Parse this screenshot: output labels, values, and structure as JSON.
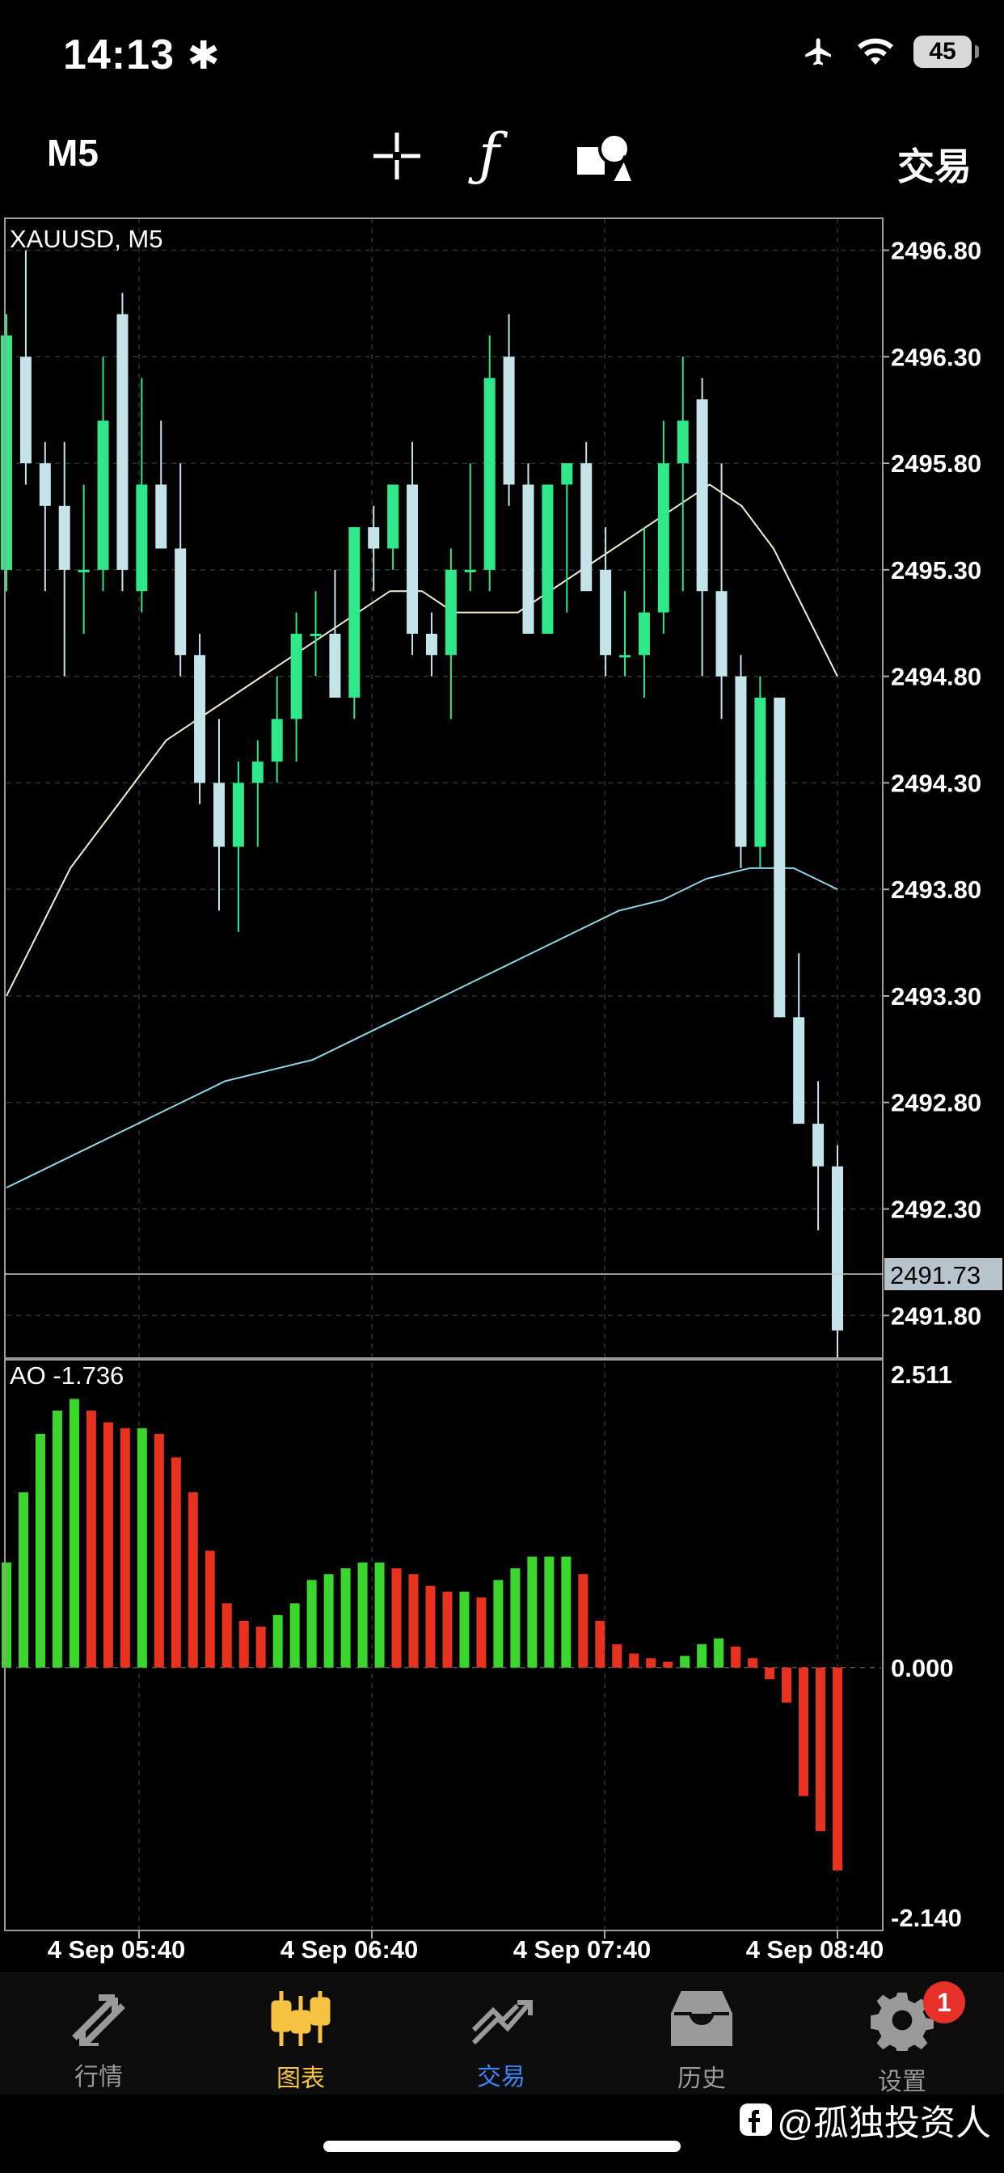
{
  "status_bar": {
    "time": "14:13",
    "battery": "45",
    "icons": [
      "bluetooth-icon",
      "airplane-icon",
      "wifi-icon",
      "battery-icon"
    ]
  },
  "toolbar": {
    "timeframe": "M5",
    "trade_label": "交易",
    "icons": [
      "crosshair-icon",
      "function-icon",
      "objects-icon"
    ]
  },
  "chart": {
    "symbol_label": "XAUUSD, M5",
    "current_price_label": "2491.73",
    "price_axis_labels": [
      "2496.80",
      "2496.30",
      "2495.80",
      "2495.30",
      "2494.80",
      "2494.30",
      "2493.80",
      "2493.30",
      "2492.80",
      "2492.30",
      "2491.80"
    ],
    "time_axis_labels": [
      "4 Sep 05:40",
      "4 Sep 06:40",
      "4 Sep 07:40",
      "4 Sep 08:40"
    ],
    "ao_label": "AO -1.736",
    "ao_axis_labels": [
      "2.511",
      "0.000",
      "-2.140"
    ],
    "colors": {
      "bull": "#2ee88a",
      "bear": "#c4e4ea",
      "ao_up": "#3ad62c",
      "ao_down": "#e8321e",
      "ma_fast": "#f2efcf",
      "ma_slow": "#8fd6e6"
    }
  },
  "chart_data": {
    "type": "candlestick",
    "symbol": "XAUUSD",
    "timeframe": "M5",
    "ylim": [
      2491.6,
      2496.95
    ],
    "candles_ohlc": [
      [
        2495.3,
        2496.5,
        2495.2,
        2496.4
      ],
      [
        2496.3,
        2496.8,
        2495.7,
        2495.8
      ],
      [
        2495.8,
        2495.9,
        2495.2,
        2495.6
      ],
      [
        2495.6,
        2495.9,
        2494.8,
        2495.3
      ],
      [
        2495.3,
        2495.7,
        2495.0,
        2495.3
      ],
      [
        2495.3,
        2496.3,
        2495.2,
        2496.0
      ],
      [
        2496.5,
        2496.6,
        2495.2,
        2495.3
      ],
      [
        2495.2,
        2496.2,
        2495.1,
        2495.7
      ],
      [
        2495.7,
        2496.0,
        2495.4,
        2495.4
      ],
      [
        2495.4,
        2495.8,
        2494.8,
        2494.9
      ],
      [
        2494.9,
        2495.0,
        2494.2,
        2494.3
      ],
      [
        2494.3,
        2494.6,
        2493.7,
        2494.0
      ],
      [
        2494.0,
        2494.4,
        2493.6,
        2494.3
      ],
      [
        2494.3,
        2494.5,
        2494.0,
        2494.4
      ],
      [
        2494.4,
        2494.8,
        2494.3,
        2494.6
      ],
      [
        2494.6,
        2495.1,
        2494.4,
        2495.0
      ],
      [
        2495.0,
        2495.2,
        2494.8,
        2495.0
      ],
      [
        2495.0,
        2495.3,
        2494.7,
        2494.7
      ],
      [
        2494.7,
        2495.5,
        2494.6,
        2495.5
      ],
      [
        2495.5,
        2495.6,
        2495.2,
        2495.4
      ],
      [
        2495.4,
        2495.7,
        2495.3,
        2495.7
      ],
      [
        2495.7,
        2495.9,
        2494.9,
        2495.0
      ],
      [
        2495.0,
        2495.1,
        2494.8,
        2494.9
      ],
      [
        2494.9,
        2495.4,
        2494.6,
        2495.3
      ],
      [
        2495.3,
        2495.8,
        2495.2,
        2495.3
      ],
      [
        2495.3,
        2496.4,
        2495.2,
        2496.2
      ],
      [
        2496.3,
        2496.5,
        2495.6,
        2495.7
      ],
      [
        2495.7,
        2495.8,
        2495.1,
        2495.0
      ],
      [
        2495.0,
        2495.7,
        2495.0,
        2495.7
      ],
      [
        2495.7,
        2495.8,
        2495.1,
        2495.8
      ],
      [
        2495.8,
        2495.9,
        2495.3,
        2495.2
      ],
      [
        2495.3,
        2495.5,
        2494.8,
        2494.9
      ],
      [
        2494.9,
        2495.2,
        2494.8,
        2494.9
      ],
      [
        2494.9,
        2495.5,
        2494.7,
        2495.1
      ],
      [
        2495.1,
        2496.0,
        2495.0,
        2495.8
      ],
      [
        2495.8,
        2496.3,
        2495.2,
        2496.0
      ],
      [
        2496.1,
        2496.2,
        2494.8,
        2495.2
      ],
      [
        2495.2,
        2495.8,
        2494.6,
        2494.8
      ],
      [
        2494.8,
        2494.9,
        2493.9,
        2494.0
      ],
      [
        2494.0,
        2494.8,
        2493.9,
        2494.7
      ],
      [
        2494.7,
        2494.7,
        2493.2,
        2493.2
      ],
      [
        2493.2,
        2493.5,
        2492.7,
        2492.7
      ],
      [
        2492.7,
        2492.9,
        2492.2,
        2492.5
      ],
      [
        2492.5,
        2492.6,
        2491.6,
        2491.73
      ]
    ],
    "ma_fast": [
      2493.3,
      2493.6,
      2493.9,
      2494.1,
      2494.3,
      2494.5,
      2494.6,
      2494.7,
      2494.8,
      2494.9,
      2495.0,
      2495.1,
      2495.2,
      2495.2,
      2495.1,
      2495.1,
      2495.1,
      2495.2,
      2495.3,
      2495.4,
      2495.5,
      2495.6,
      2495.7,
      2495.6,
      2495.4,
      2495.1,
      2494.8
    ],
    "ma_slow": [
      2492.4,
      2492.5,
      2492.6,
      2492.7,
      2492.8,
      2492.9,
      2492.95,
      2493.0,
      2493.1,
      2493.2,
      2493.3,
      2493.4,
      2493.5,
      2493.6,
      2493.7,
      2493.75,
      2493.85,
      2493.9,
      2493.9,
      2493.8
    ],
    "ao": {
      "ylim": [
        -2.14,
        2.511
      ],
      "values": [
        0.9,
        1.5,
        2.0,
        2.2,
        2.3,
        2.2,
        2.1,
        2.05,
        2.05,
        2.0,
        1.8,
        1.5,
        1.0,
        0.55,
        0.4,
        0.35,
        0.45,
        0.55,
        0.75,
        0.8,
        0.85,
        0.9,
        0.9,
        0.85,
        0.8,
        0.7,
        0.65,
        0.65,
        0.6,
        0.75,
        0.85,
        0.95,
        0.95,
        0.95,
        0.8,
        0.4,
        0.2,
        0.12,
        0.08,
        0.05,
        0.1,
        0.2,
        0.25,
        0.18,
        0.08,
        -0.1,
        -0.3,
        -1.1,
        -1.4,
        -1.736
      ],
      "colors_up_down": true
    }
  },
  "tabbar": {
    "tabs": [
      {
        "label": "行情",
        "icon": "quotes-icon",
        "active": false
      },
      {
        "label": "图表",
        "icon": "candles-icon",
        "active": true
      },
      {
        "label": "交易",
        "icon": "trade-icon",
        "active": false
      },
      {
        "label": "历史",
        "icon": "history-icon",
        "active": false
      },
      {
        "label": "设置",
        "icon": "settings-icon",
        "active": false,
        "badge": "1"
      }
    ]
  },
  "watermark": {
    "text": "@孤独投资人"
  }
}
